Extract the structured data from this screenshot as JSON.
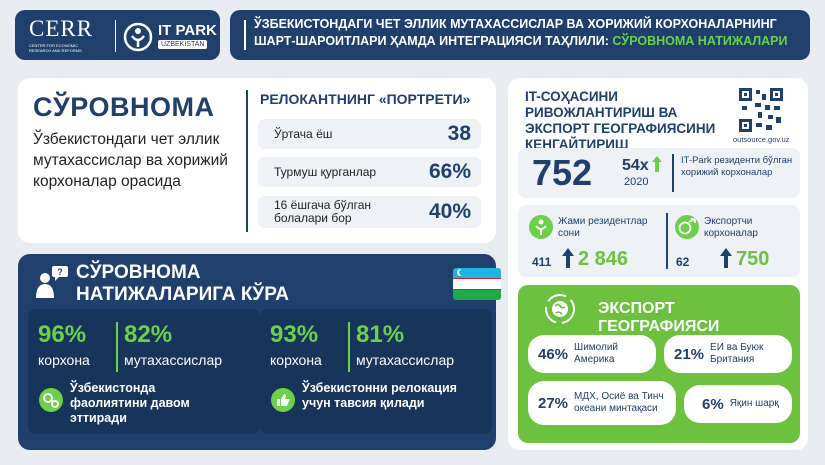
{
  "header": {
    "logo_cerr": "CERR",
    "logo_cerr_sub": "CENTER FOR ECONOMIC RESEARCH AND REFORMS",
    "logo_itpark": "IT PARK",
    "logo_itpark_sub": "UZBEKISTAN",
    "title_line1": "ЎЗБЕКИСТОНДАГИ ЧЕТ ЭЛЛИК МУТАХАССИСЛАР ВА ХОРИЖИЙ КОРХОНАЛАРНИНГ",
    "title_line2_a": "ШАРТ-ШАРОИТЛАРИ ҲАМДА ИНТЕГРАЦИЯСИ ТАҲЛИЛИ: ",
    "title_line2_b": "СЎРОВНОМА НАТИЖАЛАРИ"
  },
  "survey": {
    "title": "СЎРОВНОМА",
    "desc": "Ўзбекистондаги чет эллик мутахассислар ва хорижий корхоналар орасида",
    "portrait_title": "РЕЛОКАНТНИНГ «ПОРТРЕТИ»",
    "stats": [
      {
        "label": "Ўртача ёш",
        "value": "38"
      },
      {
        "label": "Турмуш қурганлар",
        "value": "66%"
      },
      {
        "label": "16 ёшгача бўлган болалари бор",
        "value": "40%"
      }
    ]
  },
  "results": {
    "title_line1": "СЎРОВНОМА",
    "title_line2": "НАТИЖАЛАРИГА КЎРА",
    "left": {
      "pct1": "96%",
      "lbl1": "корхона",
      "pct2": "82%",
      "lbl2": "мутахассислар",
      "note": "Ўзбекистонда фаолиятини давом эттиради"
    },
    "right": {
      "pct1": "93%",
      "lbl1": "корхона",
      "pct2": "81%",
      "lbl2": "мутахассислар",
      "note": "Ўзбекистонни релокация учун тавсия қилади"
    }
  },
  "itpark": {
    "title": "IT-СОҲАСИНИ РИВОЖЛАНТИРИШ ВА ЭКСПОРТ ГЕОГРАФИЯСИНИ КЕНГАЙТИРИШ",
    "qr_url": "outsource.gov.uz",
    "big_num": "752",
    "growth": "54x",
    "growth_year": "2020",
    "big_desc": "IT-Park резиденти бўлган хорижий корхоналар",
    "residents_label": "Жами резидентлар сони",
    "residents_old": "411",
    "residents_new": "2 846",
    "exporters_label": "Экспортчи корхоналар",
    "exporters_old": "62",
    "exporters_new": "750",
    "export_title": "ЭКСПОРТ ГЕОГРАФИЯСИ",
    "geo": [
      {
        "value": "46%",
        "label": "Шимолий Америка"
      },
      {
        "value": "21%",
        "label": "ЕИ ва Буюк Британия"
      },
      {
        "value": "27%",
        "label": "МДХ, Осиё ва Тинч океани минтақаси"
      },
      {
        "value": "6%",
        "label": "Яқин шарқ"
      }
    ]
  },
  "colors": {
    "navy": "#1f3f6c",
    "green": "#6cd14a",
    "panel_green": "#6cc23e"
  }
}
